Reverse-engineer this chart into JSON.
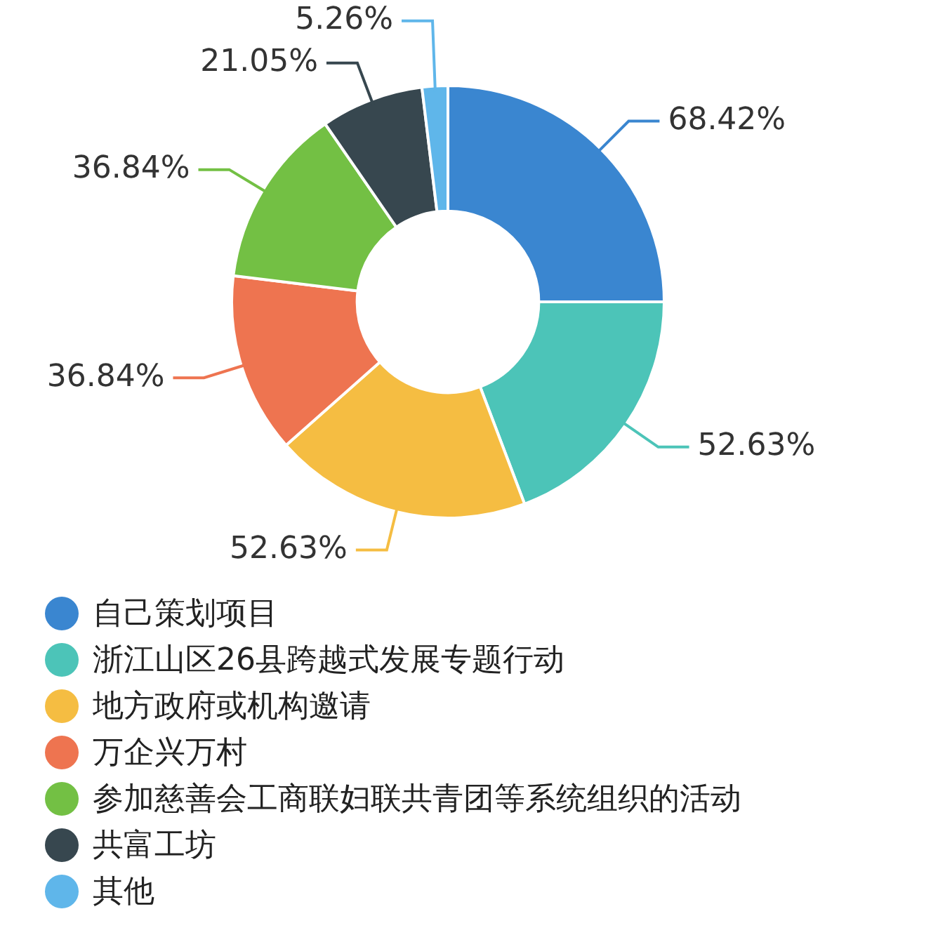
{
  "chart_data": {
    "type": "donut",
    "categories": [
      "自己策划项目",
      "浙江山区26县跨越式发展专题行动",
      "地方政府或机构邀请",
      "万企兴万村",
      "参加慈善会工商联妇联共青团等系统组织的活动",
      "共富工坊",
      "其他"
    ],
    "values": [
      68.42,
      52.63,
      52.63,
      36.84,
      36.84,
      21.05,
      5.26
    ],
    "value_labels": [
      "68.42%",
      "52.63%",
      "52.63%",
      "36.84%",
      "36.84%",
      "21.05%",
      "5.26%"
    ],
    "colors": [
      "#3a86d0",
      "#4cc4b8",
      "#f5bd42",
      "#ee7450",
      "#73c044",
      "#37474f",
      "#5fb6ea"
    ],
    "legend": "bottom left"
  }
}
